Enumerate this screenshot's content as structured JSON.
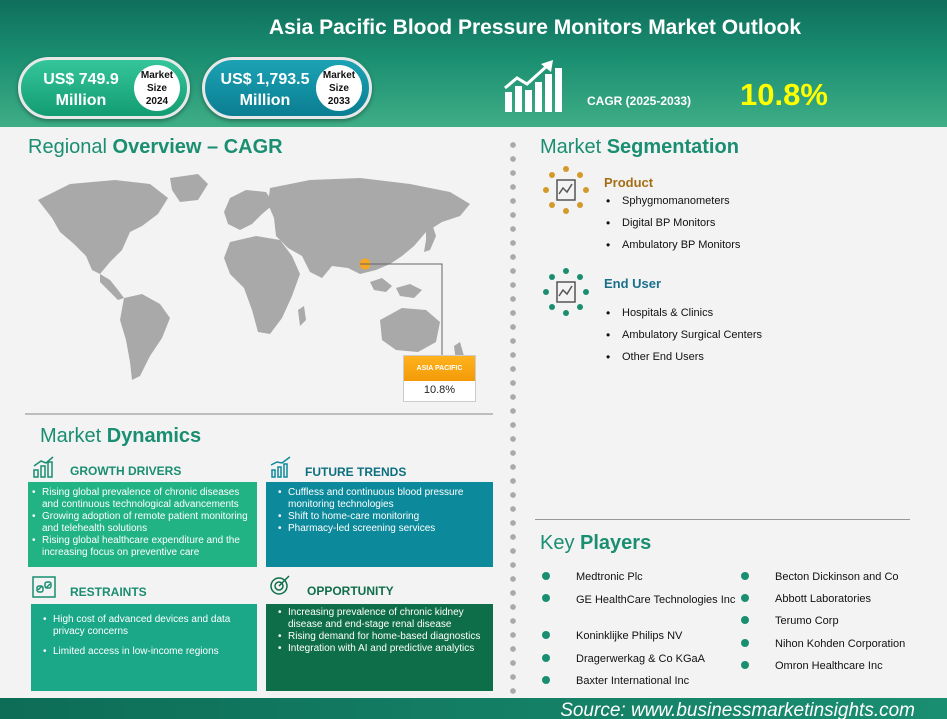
{
  "header": {
    "title": "Asia Pacific Blood Pressure Monitors Market Outlook",
    "market_2024": {
      "value_line1": "US$ 749.9",
      "value_line2": "Million",
      "badge_l1": "Market",
      "badge_l2": "Size",
      "badge_l3": "2024"
    },
    "market_2033": {
      "value_line1": "US$ 1,793.5",
      "value_line2": "Million",
      "badge_l1": "Market",
      "badge_l2": "Size",
      "badge_l3": "2033"
    },
    "cagr_label": "CAGR (2025-2033)",
    "cagr_value": "10.8%",
    "cagr_icon": "growth-chart-icon"
  },
  "regional": {
    "title_light": "Regional ",
    "title_bold": "Overview – CAGR",
    "region_label": "ASIA PACIFIC",
    "region_value": "10.8%",
    "highlight_color": "#f6a623"
  },
  "segmentation": {
    "title_light": "Market ",
    "title_bold": "Segmentation",
    "product": {
      "heading": "Product",
      "items": [
        "Sphygmomanometers",
        "Digital BP Monitors",
        "Ambulatory BP Monitors"
      ]
    },
    "end_user": {
      "heading": "End User",
      "items": [
        "Hospitals & Clinics",
        "Ambulatory Surgical Centers",
        "Other End Users"
      ]
    }
  },
  "dynamics": {
    "title_light": "Market ",
    "title_bold": "Dynamics",
    "growth_drivers": {
      "heading": "GROWTH DRIVERS",
      "items": [
        "Rising global prevalence of chronic diseases and continuous technological advancements",
        "Growing adoption of remote patient monitoring and telehealth solutions",
        "Rising global healthcare expenditure and the increasing focus on preventive care"
      ]
    },
    "future_trends": {
      "heading": "FUTURE TRENDS",
      "items": [
        "Cuffless and continuous blood pressure monitoring technologies",
        "Shift to home-care monitoring",
        "Pharmacy-led screening services"
      ]
    },
    "restraints": {
      "heading": "RESTRAINTS",
      "items": [
        "High cost of advanced devices and data privacy concerns",
        "Limited access in low-income regions"
      ]
    },
    "opportunity": {
      "heading": "OPPORTUNITY",
      "items": [
        "Increasing prevalence of chronic kidney disease and end-stage renal disease",
        "Rising demand for home-based diagnostics",
        "Integration with AI and predictive analytics"
      ]
    },
    "colors": {
      "drivers": "#21b383",
      "trends": "#0c8a9c",
      "restraints": "#1ba889",
      "opportunity": "#0f6e4a"
    }
  },
  "key_players": {
    "title_light": "Key ",
    "title_bold": "Players",
    "left": [
      "Medtronic Plc",
      "GE HealthCare Technologies Inc",
      "Koninklijke Philips NV",
      "Dragerwerkag & Co KGaA",
      "Baxter International Inc"
    ],
    "right": [
      "Becton Dickinson and Co",
      "Abbott Laboratories",
      "Terumo Corp",
      "Nihon Kohden Corporation",
      "Omron Healthcare Inc"
    ]
  },
  "footer": {
    "source": "Source:  www.businessmarketinsights.com"
  }
}
